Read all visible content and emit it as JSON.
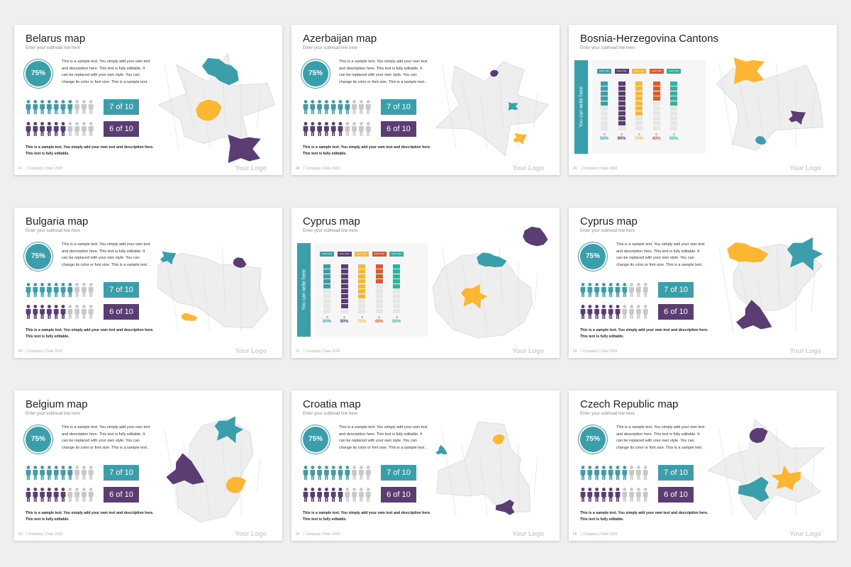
{
  "slides": [
    {
      "layout": "stats",
      "title": "Belarus map",
      "subtitle": "Enter your subhead line here",
      "percent": "75%",
      "body": "This is a sample text. You simply add your own text and description here. This text is fully editable. It can be replaced with your own style. You can change its color or font size. This is a sample text. .",
      "rows": [
        "7 of 10",
        "6 of 10"
      ],
      "note": "This is a sample text. You simply add your own text and description here. This text is fully editable.",
      "page": "47",
      "footer": "| Company | Date 2020",
      "logo": "Your Logo"
    },
    {
      "layout": "stats",
      "title": "Azerbaijan map",
      "subtitle": "Enter your subhead line here",
      "percent": "75%",
      "body": "This is a sample text. You simply add your own text and description here. This text is fully editable. It can be replaced with your own style. You can change its color or font size. This is a sample text. .",
      "rows": [
        "7 of 10",
        "6 of 10"
      ],
      "note": "This is a sample text. You simply add your own text and description here. This text is fully editable.",
      "page": "48",
      "footer": "| Company | Date 2020",
      "logo": "Your Logo"
    },
    {
      "layout": "bars",
      "title": "Bosnia-Herzegovina Cantons",
      "subtitle": "Enter your subhead line here",
      "side_label": "You can write here",
      "columns": [
        "Insert Title",
        "Insert Title",
        "Insert Title",
        "Insert Title",
        "Insert Title"
      ],
      "values": [
        50,
        90,
        70,
        40,
        50
      ],
      "value_labels": [
        "50%",
        "90%",
        "70%",
        "40%",
        "50%"
      ],
      "page": "49",
      "footer": "| Company | Date 2020",
      "logo": "Your Logo"
    },
    {
      "layout": "stats",
      "title": "Bulgaria map",
      "subtitle": "Enter your subhead line here",
      "percent": "75%",
      "body": "This is a sample text. You simply add your own text and description here. This text is fully editable. It can be replaced with your own style. You can change its color or font size. This is a sample text. .",
      "rows": [
        "7 of 10",
        "6 of 10"
      ],
      "note": "This is a sample text. You simply add your own text and description here. This text is fully editable.",
      "page": "50",
      "footer": "| Company | Date 2020",
      "logo": "Your Logo"
    },
    {
      "layout": "bars",
      "title": "Cyprus map",
      "subtitle": "Enter your subhead line here",
      "side_label": "You can write here",
      "columns": [
        "Insert Title",
        "Insert Title",
        "Insert Title",
        "Insert Title",
        "Insert Title"
      ],
      "values": [
        50,
        90,
        70,
        40,
        50
      ],
      "value_labels": [
        "50%",
        "90%",
        "70%",
        "40%",
        "50%"
      ],
      "page": "51",
      "footer": "| Company | Date 2020",
      "logo": "Your Logo"
    },
    {
      "layout": "stats",
      "title": "Cyprus map",
      "subtitle": "Enter your subhead line here",
      "percent": "75%",
      "body": "This is a sample text. You simply add your own text and description here. This text is fully editable. It can be replaced with your own style. You can change its color or font size. This is a sample text. .",
      "rows": [
        "7 of 10",
        "6 of 10"
      ],
      "note": "This is a sample text. You simply add your own text and description here. This text is fully editable.",
      "page": "52",
      "footer": "| Company | Date 2020",
      "logo": "Your Logo"
    },
    {
      "layout": "stats",
      "title": "Belgium map",
      "subtitle": "Enter your subhead line here",
      "percent": "75%",
      "body": "This is a sample text. You simply add your own text and description here. This text is fully editable. It can be replaced with your own style. You can change its color or font size. This is a sample text. .",
      "rows": [
        "7 of 10",
        "6 of 10"
      ],
      "note": "This is a sample text. You simply add your own text and description here. This text is fully editable.",
      "page": "53",
      "footer": "| Company | Date 2020",
      "logo": "Your Logo"
    },
    {
      "layout": "stats",
      "title": "Croatia map",
      "subtitle": "Enter your subhead line here",
      "percent": "75%",
      "body": "This is a sample text. You simply add your own text and description here. This text is fully editable. It can be replaced with your own style. You can change its color or font size. This is a sample text. .",
      "rows": [
        "7 of 10",
        "6 of 10"
      ],
      "note": "This is a sample text. You simply add your own text and description here. This text is fully editable.",
      "page": "54",
      "footer": "| Company | Date 2020",
      "logo": "Your Logo"
    },
    {
      "layout": "stats",
      "title": "Czech Republic map",
      "subtitle": "Enter your subhead line here",
      "percent": "75%",
      "body": "This is a sample text. You simply add your own text and description here. This text is fully editable. It can be replaced with your own style. You can change its color or font size. This is a sample text. .",
      "rows": [
        "7 of 10",
        "6 of 10"
      ],
      "note": "This is a sample text. You simply add your own text and description here. This text is fully editable.",
      "page": "55",
      "footer": "| Company | Date 2020",
      "logo": "Your Logo"
    }
  ]
}
